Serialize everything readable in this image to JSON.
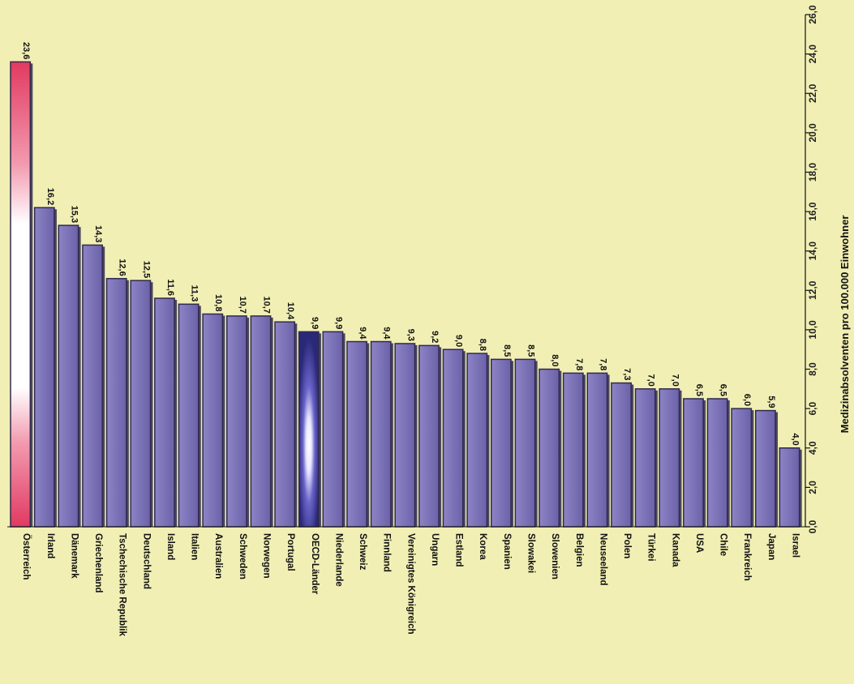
{
  "colors": {
    "background": "#f1efb4",
    "bar": "#7a70b4",
    "bar_edge": "#2f2a4e",
    "highlight_bar": "#e8486a",
    "oecd_bar": "#2c2a7a"
  },
  "chart_data": {
    "type": "bar",
    "orientation": "rotated-90",
    "ylabel": "Medizinabsolventen pro 100.000 Einwohner",
    "ylim": [
      0,
      26
    ],
    "yticks": [
      "0,0",
      "2,0",
      "4,0",
      "6,0",
      "8,0",
      "10,0",
      "12,0",
      "14,0",
      "16,0",
      "18,0",
      "20,0",
      "22,0",
      "24,0",
      "26,0"
    ],
    "grid": false,
    "categories": [
      "Österreich",
      "Irland",
      "Dänemark",
      "Griechenland",
      "Tschechische Republik",
      "Deutschland",
      "Island",
      "Italien",
      "Australien",
      "Schweden",
      "Norwegen",
      "Portugal",
      "OECD-Länder",
      "Niederlande",
      "Schweiz",
      "Finnland",
      "Vereinigtes Königreich",
      "Ungarn",
      "Estland",
      "Korea",
      "Spanien",
      "Slowakei",
      "Slowenien",
      "Belgien",
      "Neuseeland",
      "Polen",
      "Türkei",
      "Kanada",
      "USA",
      "Chile",
      "Frankreich",
      "Japan",
      "Israel"
    ],
    "values": [
      23.6,
      16.2,
      15.3,
      14.3,
      12.6,
      12.5,
      11.6,
      11.3,
      10.8,
      10.7,
      10.7,
      10.4,
      9.9,
      9.9,
      9.4,
      9.4,
      9.3,
      9.2,
      9.0,
      8.8,
      8.5,
      8.5,
      8.0,
      7.8,
      7.8,
      7.3,
      7.0,
      7.0,
      6.5,
      6.5,
      6.0,
      5.9,
      4.0
    ],
    "value_labels": [
      "23,6",
      "16,2",
      "15,3",
      "14,3",
      "12,6",
      "12,5",
      "11,6",
      "11,3",
      "10,8",
      "10,7",
      "10,7",
      "10,4",
      "9,9",
      "9,9",
      "9,4",
      "9,4",
      "9,3",
      "9,2",
      "9,0",
      "8,8",
      "8,5",
      "8,5",
      "8,0",
      "7,8",
      "7,8",
      "7,3",
      "7,0",
      "7,0",
      "6,5",
      "6,5",
      "6,0",
      "5,9",
      "4,0"
    ],
    "highlight": [
      "Österreich"
    ],
    "average": [
      "OECD-Länder"
    ]
  }
}
